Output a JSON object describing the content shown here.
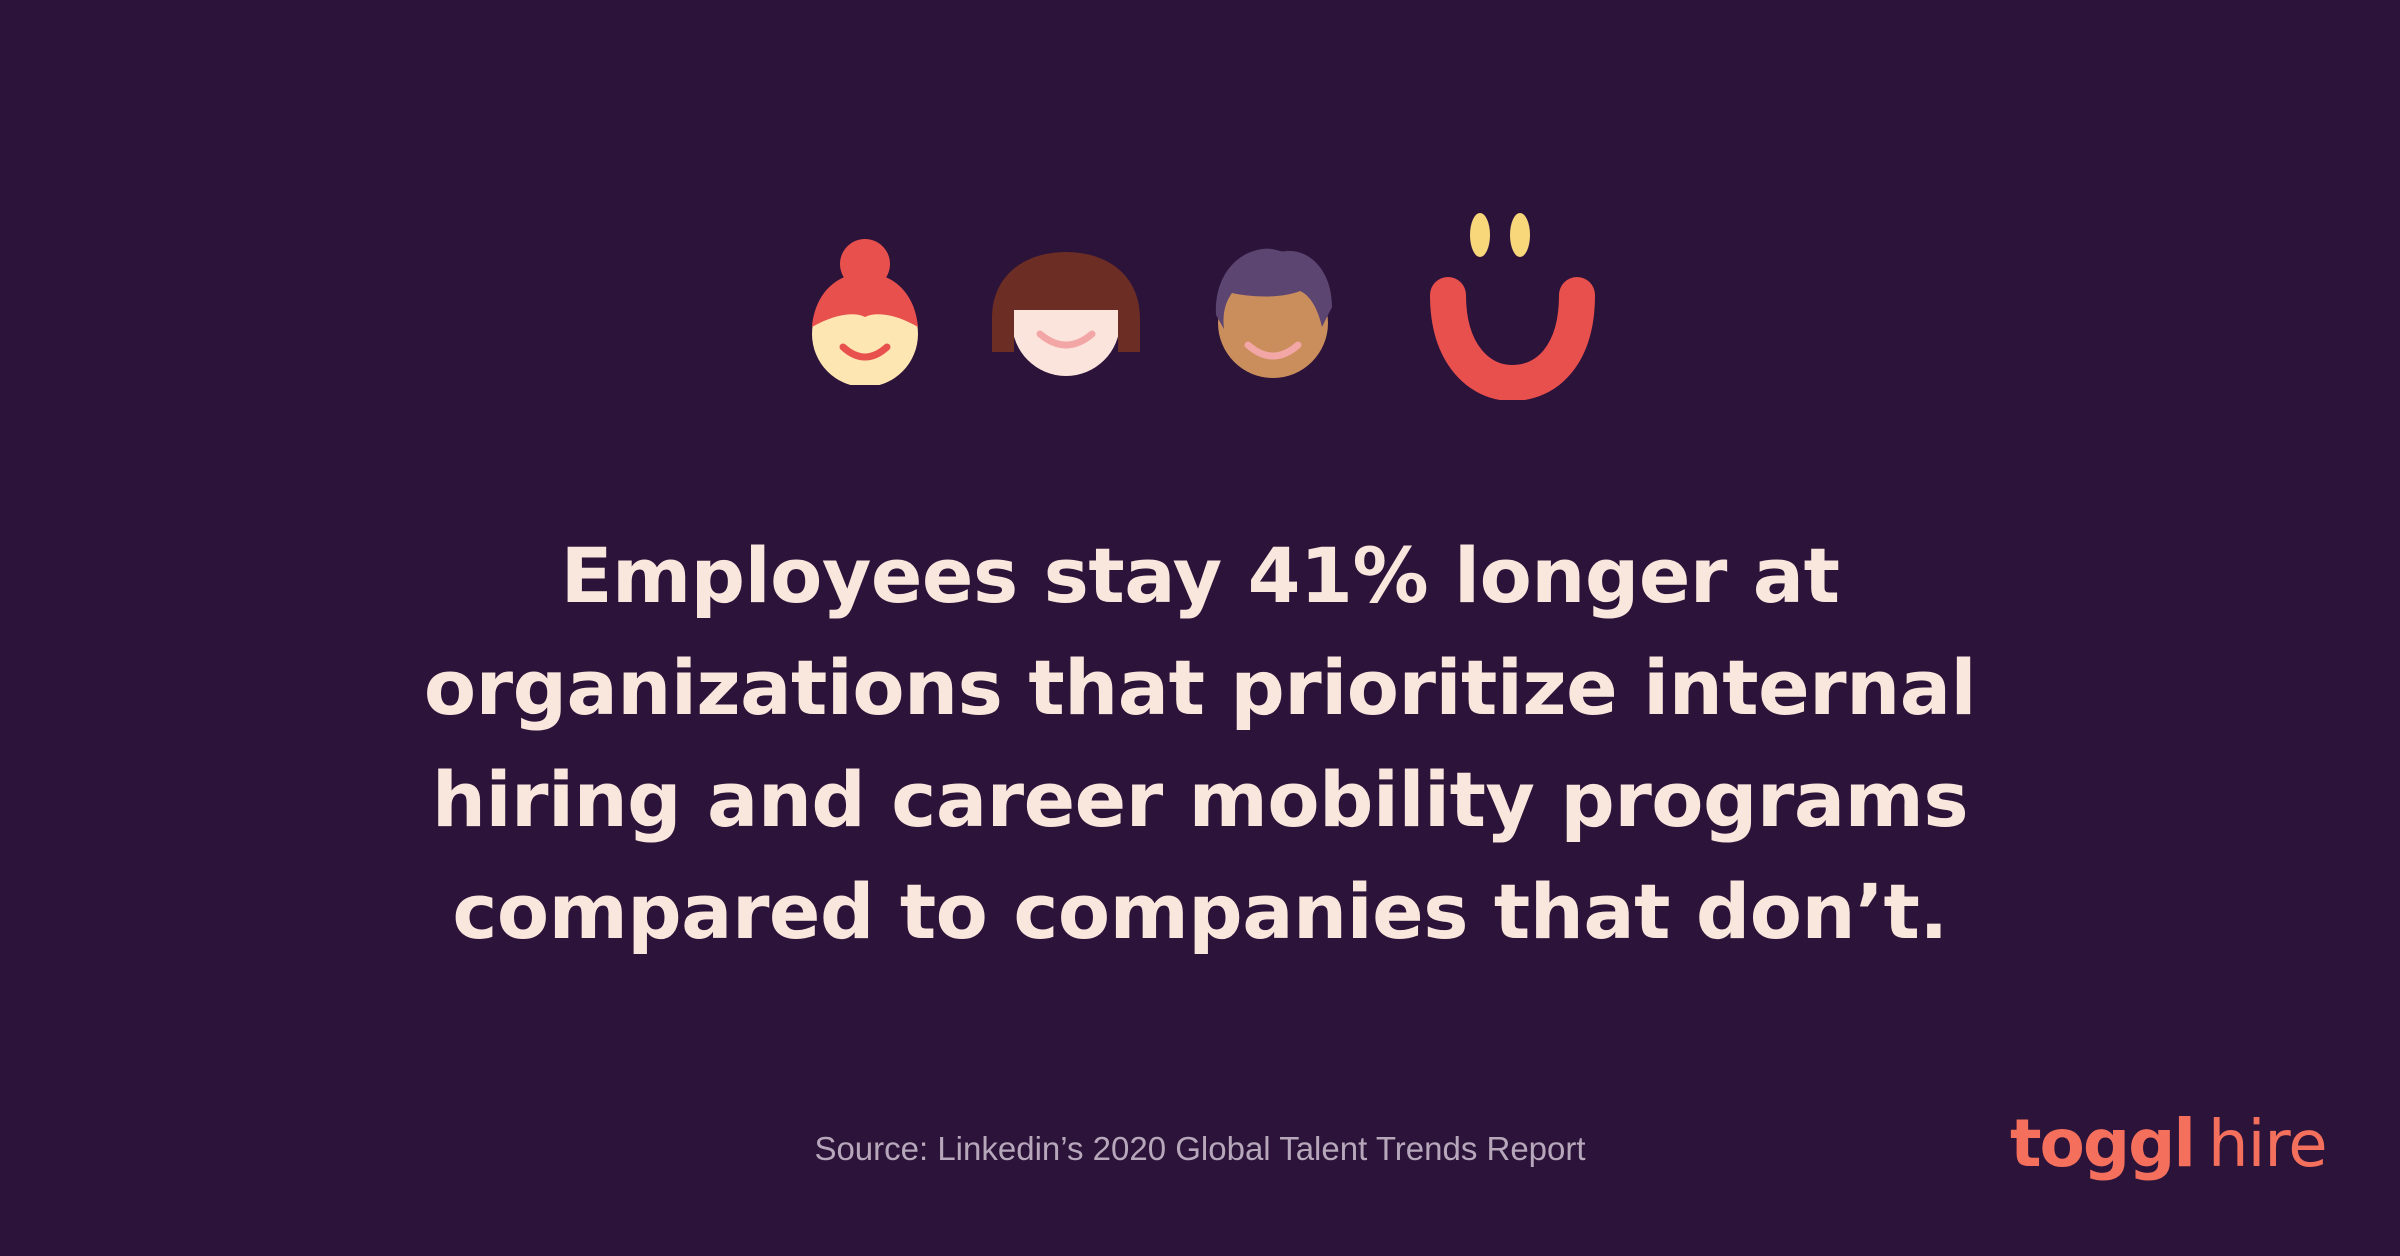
{
  "illustration": {
    "faces": [
      {
        "icon": "face-red-bun-hair-icon"
      },
      {
        "icon": "face-brown-bob-hair-icon"
      },
      {
        "icon": "face-purple-hair-icon"
      },
      {
        "icon": "smiley-icon"
      }
    ]
  },
  "headline": {
    "lines": [
      "Employees stay 41% longer at",
      "organizations that prioritize internal",
      "hiring and career mobility programs",
      "compared to companies that don’t."
    ]
  },
  "source": "Source: Linkedin’s 2020 Global Talent Trends Report",
  "logo": {
    "brand": "toggl",
    "product": "hire"
  },
  "colors": {
    "background": "#2c133a",
    "headline": "#f9e6dc",
    "accent": "#f4705c",
    "smiley_red": "#e8504e",
    "smiley_eyes": "#f7d77a"
  }
}
